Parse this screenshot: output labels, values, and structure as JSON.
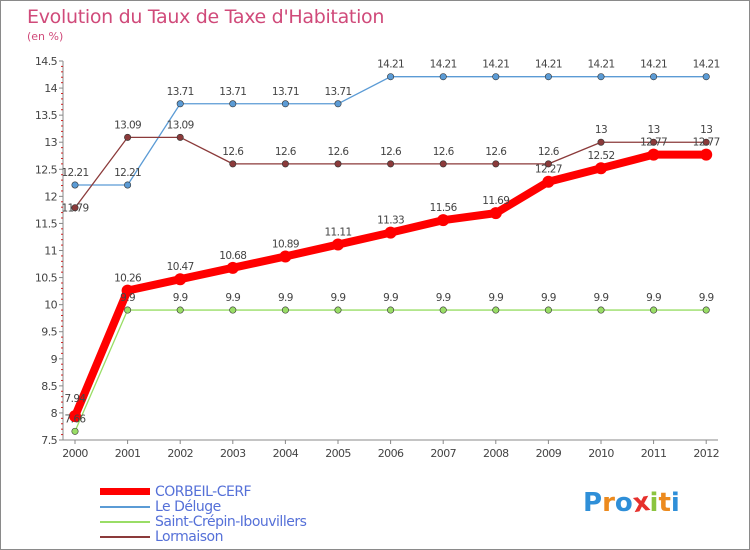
{
  "header": {
    "title": "Evolution du Taux de Taxe d'Habitation",
    "subtitle": "(en %)"
  },
  "logo": {
    "text": "Proxiti",
    "letters": [
      "P",
      "r",
      "o",
      "x",
      "i",
      "t",
      "i"
    ],
    "colors": [
      "#2f8fd8",
      "#ec8a1e",
      "#2f8fd8",
      "#e6302c",
      "#8bc43f",
      "#ec8a1e",
      "#2f8fd8"
    ]
  },
  "chart_data": {
    "type": "line",
    "title": "Evolution du Taux de Taxe d'Habitation",
    "ylabel": "(en %)",
    "xlabel": "",
    "x": [
      "2000",
      "2001",
      "2002",
      "2003",
      "2004",
      "2005",
      "2006",
      "2007",
      "2008",
      "2009",
      "2010",
      "2011",
      "2012"
    ],
    "ylim": [
      7.5,
      14.5
    ],
    "yticks": [
      7.5,
      8,
      8.5,
      9,
      9.5,
      10,
      10.5,
      11,
      11.5,
      12,
      12.5,
      13,
      13.5,
      14,
      14.5
    ],
    "ytick_labels": [
      "7.5",
      "8",
      "8.5",
      "9",
      "9.5",
      "10",
      "10.5",
      "11",
      "11.5",
      "12",
      "12.5",
      "13",
      "13.5",
      "14",
      "14.5"
    ],
    "grid": false,
    "legend_position": "bottom-left",
    "series": [
      {
        "name": "CORBEIL-CERF",
        "color": "#ff0000",
        "values": [
          7.94,
          10.26,
          10.47,
          10.68,
          10.89,
          11.11,
          11.33,
          11.56,
          11.69,
          12.27,
          12.52,
          12.77,
          12.77
        ],
        "labels": [
          "7.94",
          "10.26",
          "10.47",
          "10.68",
          "10.89",
          "11.11",
          "11.33",
          "11.56",
          "11.69",
          "12.27",
          "12.52",
          "12.77",
          "12.77"
        ]
      },
      {
        "name": "Le Déluge",
        "color": "#5b9bd5",
        "values": [
          12.21,
          12.21,
          13.71,
          13.71,
          13.71,
          13.71,
          14.21,
          14.21,
          14.21,
          14.21,
          14.21,
          14.21,
          14.21
        ],
        "labels": [
          "12.21",
          "12.21",
          "13.71",
          "13.71",
          "13.71",
          "13.71",
          "14.21",
          "14.21",
          "14.21",
          "14.21",
          "14.21",
          "14.21",
          "14.21"
        ]
      },
      {
        "name": "Saint-Crépin-Ibouvillers",
        "color": "#99dd66",
        "values": [
          7.66,
          9.9,
          9.9,
          9.9,
          9.9,
          9.9,
          9.9,
          9.9,
          9.9,
          9.9,
          9.9,
          9.9,
          9.9
        ],
        "labels": [
          "7.66",
          "9.9",
          "9.9",
          "9.9",
          "9.9",
          "9.9",
          "9.9",
          "9.9",
          "9.9",
          "9.9",
          "9.9",
          "9.9",
          "9.9"
        ]
      },
      {
        "name": "Lormaison",
        "color": "#8b3a3a",
        "values": [
          11.79,
          13.09,
          13.09,
          12.6,
          12.6,
          12.6,
          12.6,
          12.6,
          12.6,
          12.6,
          13,
          13,
          13
        ],
        "labels": [
          "11.79",
          "13.09",
          "13.09",
          "12.6",
          "12.6",
          "12.6",
          "12.6",
          "12.6",
          "12.6",
          "12.6",
          "13",
          "13",
          "13"
        ]
      }
    ]
  }
}
